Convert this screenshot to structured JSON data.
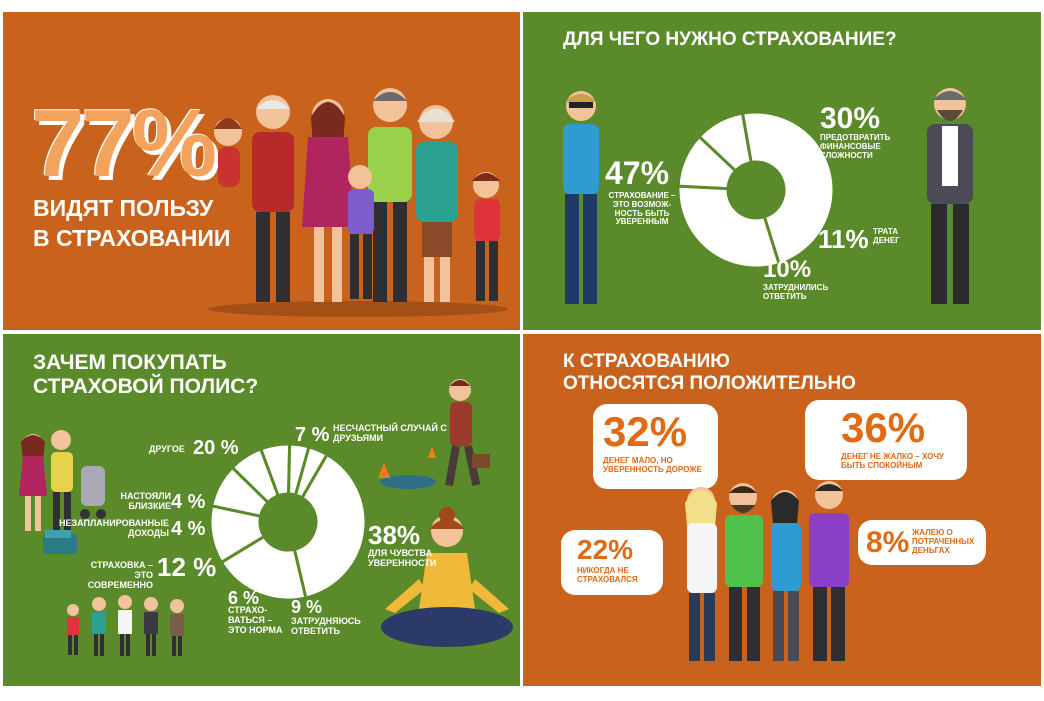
{
  "panel1": {
    "big_number": "77%",
    "caption_line1": "ВИДЯТ ПОЛЬЗУ",
    "caption_line2": "В СТРАХОВАНИИ"
  },
  "panel2": {
    "title": "ДЛЯ ЧЕГО НУЖНО СТРАХОВАНИЕ?",
    "items": [
      {
        "pct": "47%",
        "label": "СТРАХОВАНИЕ – ЭТО ВОЗМОЖ-НОСТЬ БЫТЬ УВЕРЕННЫМ"
      },
      {
        "pct": "30%",
        "label": "ПРЕДОТВРАТИТЬ ФИНАНСОВЫЕ СЛОЖНОСТИ"
      },
      {
        "pct": "11%",
        "label": "ТРАТА ДЕНЕГ"
      },
      {
        "pct": "10%",
        "label": "ЗАТРУДНИЛИСЬ ОТВЕТИТЬ"
      }
    ]
  },
  "panel3": {
    "title_line1": "ЗАЧЕМ ПОКУПАТЬ",
    "title_line2": "СТРАХОВОЙ ПОЛИС?",
    "items": [
      {
        "pct": "20 %",
        "label": "ДРУГОЕ"
      },
      {
        "pct": "4 %",
        "label": "НАСТОЯЛИ БЛИЗКИЕ"
      },
      {
        "pct": "4 %",
        "label": "НЕЗАПЛАНИРОВАННЫЕ ДОХОДЫ"
      },
      {
        "pct": "12 %",
        "label": "СТРАХОВКА – ЭТО СОВРЕМЕННО"
      },
      {
        "pct": "6 %",
        "label": "СТРАХО-ВАТЬСЯ – ЭТО НОРМА"
      },
      {
        "pct": "9 %",
        "label": "ЗАТРУДНЯЮСЬ ОТВЕТИТЬ"
      },
      {
        "pct": "38%",
        "label": "ДЛЯ ЧУВСТВА УВЕРЕННОСТИ"
      },
      {
        "pct": "7 %",
        "label": "НЕСЧАСТНЫЙ СЛУЧАЙ С ДРУЗЬЯМИ"
      }
    ]
  },
  "panel4": {
    "title_line1": "К СТРАХОВАНИЮ",
    "title_line2": "ОТНОСЯТСЯ ПОЛОЖИТЕЛЬНО",
    "bubbles": [
      {
        "pct": "32%",
        "label": "ДЕНЕГ МАЛО, НО УВЕРЕННОСТЬ ДОРОЖЕ"
      },
      {
        "pct": "36%",
        "label": "ДЕНЕГ НЕ ЖАЛКО – ХОЧУ БЫТЬ СПОКОЙНЫМ"
      },
      {
        "pct": "22%",
        "label": "НИКОГДА НЕ СТРАХОВАЛСЯ"
      },
      {
        "pct": "8%",
        "label": "ЖАЛЕЮ О ПОТРАЧЕННЫХ ДЕНЬГАХ"
      }
    ]
  },
  "chart_data": [
    {
      "type": "pie",
      "categories": [
        "СТРАХОВАНИЕ – ЭТО ВОЗМОЖНОСТЬ БЫТЬ УВЕРЕННЫМ",
        "ПРЕДОТВРАТИТЬ ФИНАНСОВЫЕ СЛОЖНОСТИ",
        "ТРАТА ДЕНЕГ",
        "ЗАТРУДНИЛИСЬ ОТВЕТИТЬ"
      ],
      "values": [
        47,
        30,
        11,
        10
      ]
    },
    {
      "type": "pie",
      "categories": [
        "ДЛЯ ЧУВСТВА УВЕРЕННОСТИ",
        "ДРУГОЕ",
        "СТРАХОВКА – ЭТО СОВРЕМЕННО",
        "ЗАТРУДНЯЮСЬ ОТВЕТИТЬ",
        "НЕСЧАСТНЫЙ СЛУЧАЙ С ДРУЗЬЯМИ",
        "СТРАХОВАТЬСЯ – ЭТО НОРМА",
        "НАСТОЯЛИ БЛИЗКИЕ",
        "НЕЗАПЛАНИРОВАННЫЕ ДОХОДЫ"
      ],
      "values": [
        38,
        20,
        12,
        9,
        7,
        6,
        4,
        4
      ]
    }
  ],
  "colors": {
    "orange": "#c8621c",
    "green": "#5b8a2a",
    "accent": "#e06a15",
    "white": "#ffffff"
  }
}
